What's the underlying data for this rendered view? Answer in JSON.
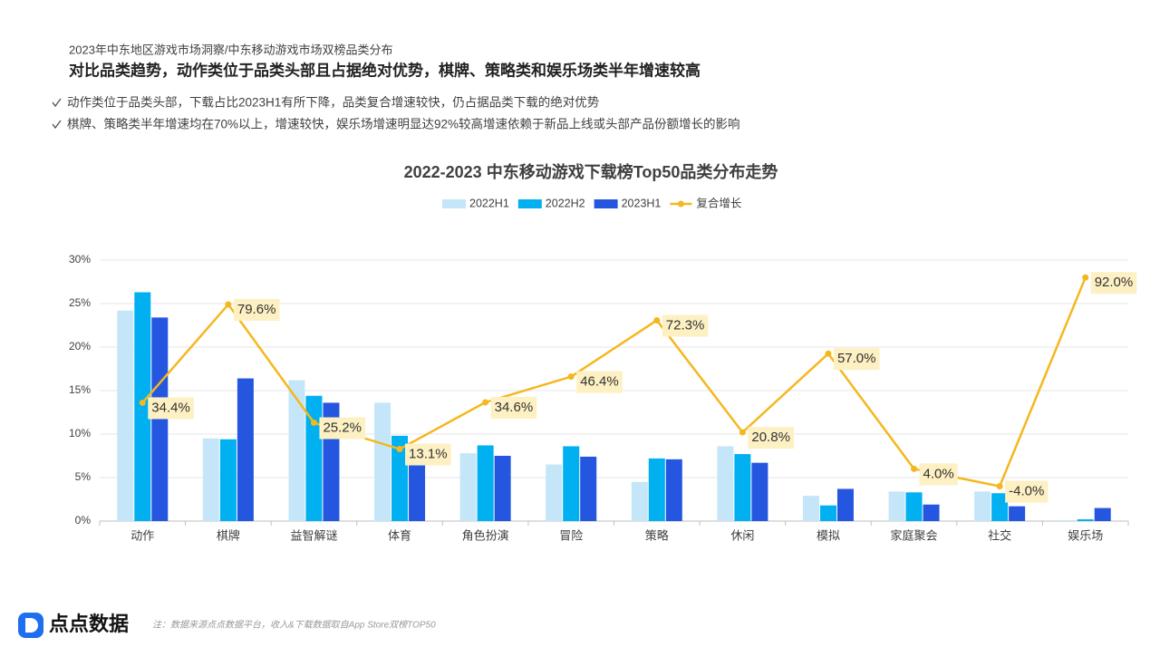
{
  "header": {
    "kicker": "2023年中东地区游戏市场洞察/中东移动游戏市场双榜品类分布",
    "title": "对比品类趋势，动作类位于品类头部且占据绝对优势，棋牌、策略类和娱乐场类半年增速较高",
    "bullets": [
      "动作类位于品类头部，下载占比2023H1有所下降，品类复合增速较快，仍占据品类下载的绝对优势",
      "棋牌、策略类半年增速均在70%以上，增速较快，娱乐场增速明显达92%较高增速依赖于新品上线或头部产品份额增长的影响"
    ]
  },
  "chart_data": {
    "type": "bar",
    "title": "2022-2023 中东移动游戏下载榜Top50品类分布走势",
    "categories": [
      "动作",
      "棋牌",
      "益智解谜",
      "体育",
      "角色扮演",
      "冒险",
      "策略",
      "休闲",
      "模拟",
      "家庭聚会",
      "社交",
      "娱乐场"
    ],
    "series": [
      {
        "name": "2022H1",
        "color": "#c5e6f8",
        "values": [
          24.2,
          9.5,
          16.2,
          13.6,
          7.8,
          6.5,
          4.5,
          8.6,
          2.9,
          3.4,
          3.4,
          0.1
        ]
      },
      {
        "name": "2022H2",
        "color": "#00b0f0",
        "values": [
          26.3,
          9.4,
          14.4,
          9.8,
          8.7,
          8.6,
          7.2,
          7.7,
          1.8,
          3.3,
          3.2,
          0.2
        ]
      },
      {
        "name": "2023H1",
        "color": "#2556e0",
        "values": [
          23.4,
          16.4,
          13.6,
          7.0,
          7.5,
          7.4,
          7.1,
          6.7,
          3.7,
          1.9,
          1.7,
          1.5
        ]
      },
      {
        "name": "复合增长",
        "color": "#f5b71e",
        "type": "line",
        "axis": "y2",
        "values": [
          34.4,
          79.6,
          25.2,
          13.1,
          34.6,
          46.4,
          72.3,
          20.8,
          57.0,
          4.0,
          -4.0,
          92.0
        ],
        "value_labels": [
          "34.4%",
          "79.6%",
          "25.2%",
          "13.1%",
          "34.6%",
          "46.4%",
          "72.3%",
          "20.8%",
          "57.0%",
          "4.0%",
          "-4.0%",
          "92.0%"
        ]
      }
    ],
    "ylim": [
      0,
      30
    ],
    "yticks": [
      {
        "value": 0,
        "label": "0%"
      },
      {
        "value": 5,
        "label": "5%"
      },
      {
        "value": 10,
        "label": "10%"
      },
      {
        "value": 15,
        "label": "15%"
      },
      {
        "value": 20,
        "label": "20%"
      },
      {
        "value": 25,
        "label": "25%"
      },
      {
        "value": 30,
        "label": "30%"
      }
    ],
    "y2lim": [
      -20,
      100
    ],
    "grid": true
  },
  "footer": {
    "brand": "点点数据",
    "note": "注：数据来源点点数据平台，收入&下载数据取自App Store双榜TOP50"
  }
}
